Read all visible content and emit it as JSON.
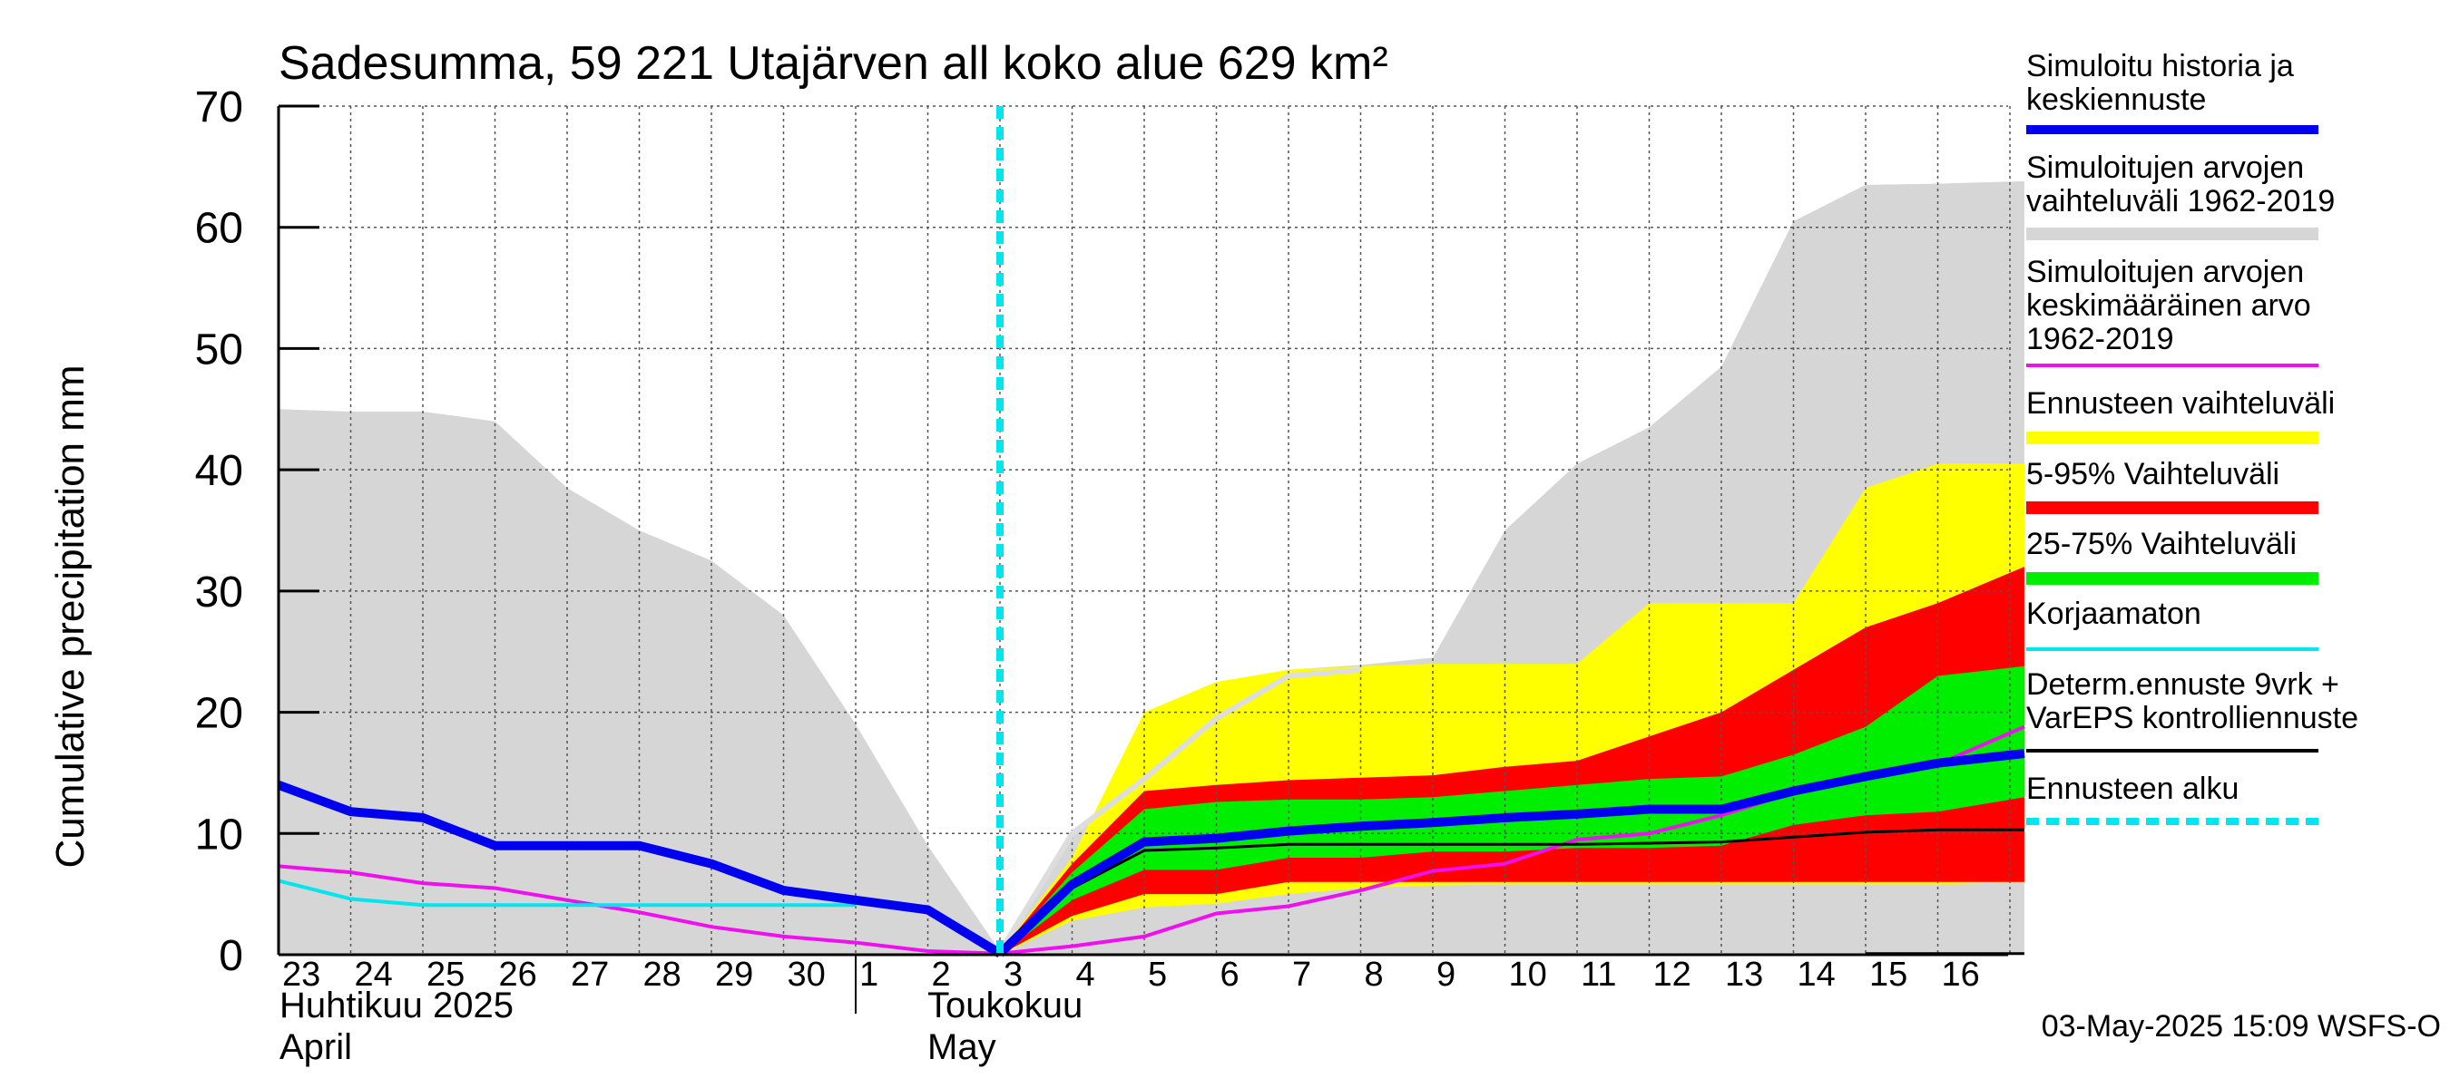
{
  "chart_data": {
    "type": "area",
    "title": "Sadesumma, 59 221 Utajärven all koko alue 629 km²",
    "ylabel": "Cumulative precipitation   mm",
    "ylim": [
      0,
      70
    ],
    "yticks": [
      0,
      10,
      20,
      30,
      40,
      50,
      60,
      70
    ],
    "x_days": [
      "23",
      "24",
      "25",
      "26",
      "27",
      "28",
      "29",
      "30",
      "1",
      "2",
      "3",
      "4",
      "5",
      "6",
      "7",
      "8",
      "9",
      "10",
      "11",
      "12",
      "13",
      "14",
      "15",
      "16"
    ],
    "month_labels": {
      "april_fi": "Huhtikuu  2025",
      "april_en": "April",
      "may_fi": "Toukokuu",
      "may_en": "May"
    },
    "xlim": [
      0,
      24.2
    ],
    "forecast_start": 10,
    "footer": "03-May-2025 15:09 WSFS-O",
    "grid": true,
    "legend_position": "right",
    "series": {
      "sim_range_upper": {
        "x": [
          0,
          1,
          2,
          3,
          4,
          5,
          6,
          7,
          8,
          9,
          10,
          11,
          12,
          13,
          14,
          15,
          16,
          17,
          18,
          19,
          20,
          21,
          22,
          23,
          24.2
        ],
        "y": [
          45,
          44.8,
          44.8,
          44,
          38.5,
          35,
          32.5,
          28,
          19,
          9,
          0.3,
          10,
          14.5,
          19.5,
          23.5,
          23.9,
          24.5,
          35,
          40.5,
          43.5,
          48.5,
          60.5,
          63.5,
          63.6,
          63.8
        ]
      },
      "sim_range_lower": {
        "x": [
          0,
          23,
          24.2
        ],
        "y": [
          0,
          0,
          0
        ]
      },
      "ens_range": {
        "x": [
          10,
          11,
          12,
          13,
          14,
          15,
          16,
          17,
          18,
          19,
          20,
          21,
          22,
          23,
          24.2
        ],
        "upper": [
          0.2,
          8,
          20,
          22.5,
          23.5,
          23.8,
          24,
          24,
          24,
          29,
          29,
          29,
          38.5,
          40.5,
          40.5
        ],
        "lower": [
          0,
          2.8,
          3.9,
          4.2,
          5,
          5.5,
          5.7,
          5.8,
          5.8,
          5.8,
          5.8,
          5.8,
          5.8,
          5.8,
          6
        ]
      },
      "p5_95": {
        "x": [
          10,
          11,
          12,
          13,
          14,
          15,
          16,
          17,
          18,
          19,
          20,
          21,
          22,
          23,
          24.2
        ],
        "upper": [
          0.2,
          7.5,
          13.5,
          14,
          14.4,
          14.6,
          14.8,
          15.5,
          16,
          18,
          20,
          23.5,
          27,
          29,
          32
        ],
        "lower": [
          0,
          3.2,
          5,
          5,
          6,
          6,
          6,
          6,
          6,
          6,
          6,
          6,
          6,
          6,
          6
        ]
      },
      "p25_75": {
        "x": [
          10,
          11,
          12,
          13,
          14,
          15,
          16,
          17,
          18,
          19,
          20,
          21,
          22,
          23,
          24.2
        ],
        "upper": [
          0.1,
          6.8,
          12,
          12.6,
          12.8,
          12.8,
          13,
          13.5,
          14,
          14.5,
          14.7,
          16.5,
          18.8,
          23,
          23.8
        ],
        "lower": [
          0,
          4.5,
          7,
          7,
          8,
          8,
          8.5,
          8.5,
          8.8,
          8.8,
          9,
          10.7,
          11.5,
          11.8,
          13
        ]
      },
      "sim_mean": {
        "x": [
          0,
          1,
          2,
          3,
          4,
          5,
          6,
          7,
          8,
          9,
          10,
          11,
          12,
          13,
          14,
          15,
          16,
          17,
          18,
          19,
          20,
          21,
          22,
          23,
          24.2
        ],
        "y": [
          7.3,
          6.8,
          5.9,
          5.5,
          4.5,
          3.5,
          2.3,
          1.5,
          1,
          0.3,
          0.1,
          0.7,
          1.5,
          3.4,
          4,
          5.3,
          6.9,
          7.5,
          9.5,
          10,
          11.5,
          13.4,
          14.6,
          15.7,
          18.8
        ]
      },
      "korjaamaton": {
        "x": [
          0,
          1,
          2,
          3,
          4,
          5,
          6,
          7,
          8
        ],
        "y": [
          6.1,
          4.6,
          4.1,
          4.1,
          4.1,
          4.1,
          4.1,
          4.1,
          4.1
        ]
      },
      "history": {
        "x": [
          0,
          1,
          2,
          3,
          4,
          5,
          6,
          7,
          8,
          9,
          10
        ],
        "y": [
          14,
          11.8,
          11.3,
          9,
          9,
          9,
          7.5,
          5.3,
          4.5,
          3.7,
          0.1
        ]
      },
      "median_forecast": {
        "x": [
          10,
          11,
          12,
          13,
          14,
          15,
          16,
          17,
          18,
          19,
          20,
          21,
          22,
          23,
          24.2
        ],
        "y": [
          0.1,
          5.8,
          9.3,
          9.6,
          10.2,
          10.6,
          10.9,
          11.3,
          11.6,
          12,
          12,
          13.5,
          14.7,
          15.8,
          16.6
        ]
      },
      "determ": {
        "x": [
          10,
          11,
          12,
          13,
          14,
          15,
          16,
          17,
          18,
          19,
          20,
          21,
          22,
          23,
          24.2
        ],
        "y": [
          0,
          5.5,
          8.6,
          8.8,
          9.1,
          9.1,
          9.1,
          9.1,
          9.1,
          9.2,
          9.3,
          9.7,
          10.1,
          10.3,
          10.3
        ]
      },
      "light_gray_line": {
        "x": [
          10,
          11,
          12,
          13,
          14,
          15
        ],
        "y": [
          0.2,
          10,
          14.5,
          19.5,
          23,
          23.5
        ]
      },
      "small_black_segment": {
        "x": [
          22,
          24.2
        ],
        "y": [
          0.1,
          0.1
        ]
      }
    },
    "legend": [
      {
        "label": "Simuloitu historia ja\nkeskiennuste",
        "color": "#0000ee",
        "kind": "line"
      },
      {
        "label": "Simuloitujen arvojen\nvaihteluväli 1962-2019",
        "color": "#d6d6d6",
        "kind": "band"
      },
      {
        "label": "Simuloitujen arvojen\nkeskimääräinen arvo\n   1962-2019",
        "color": "#ee10ee",
        "kind": "thin"
      },
      {
        "label": "Ennusteen vaihteluväli",
        "color": "#ffff00",
        "kind": "band"
      },
      {
        "label": "5-95% Vaihteluväli",
        "color": "#ff0000",
        "kind": "band"
      },
      {
        "label": "25-75% Vaihteluväli",
        "color": "#00ee00",
        "kind": "band"
      },
      {
        "label": "Korjaamaton",
        "color": "#00e5ee",
        "kind": "thin"
      },
      {
        "label": "Determ.ennuste 9vrk +\nVarEPS kontrolliennuste",
        "color": "#000000",
        "kind": "thin"
      },
      {
        "label": "Ennusteen alku",
        "color": "#00e5ee",
        "kind": "dashed"
      }
    ],
    "colors": {
      "history": "#0000ee",
      "sim_range": "#d6d6d6",
      "sim_mean": "#ee10ee",
      "ens_range": "#ffff00",
      "p5_95": "#ff0000",
      "p25_75": "#00ee00",
      "korjaamaton": "#00e5ee",
      "determ": "#000000",
      "forecast_start": "#00e5ee"
    }
  }
}
